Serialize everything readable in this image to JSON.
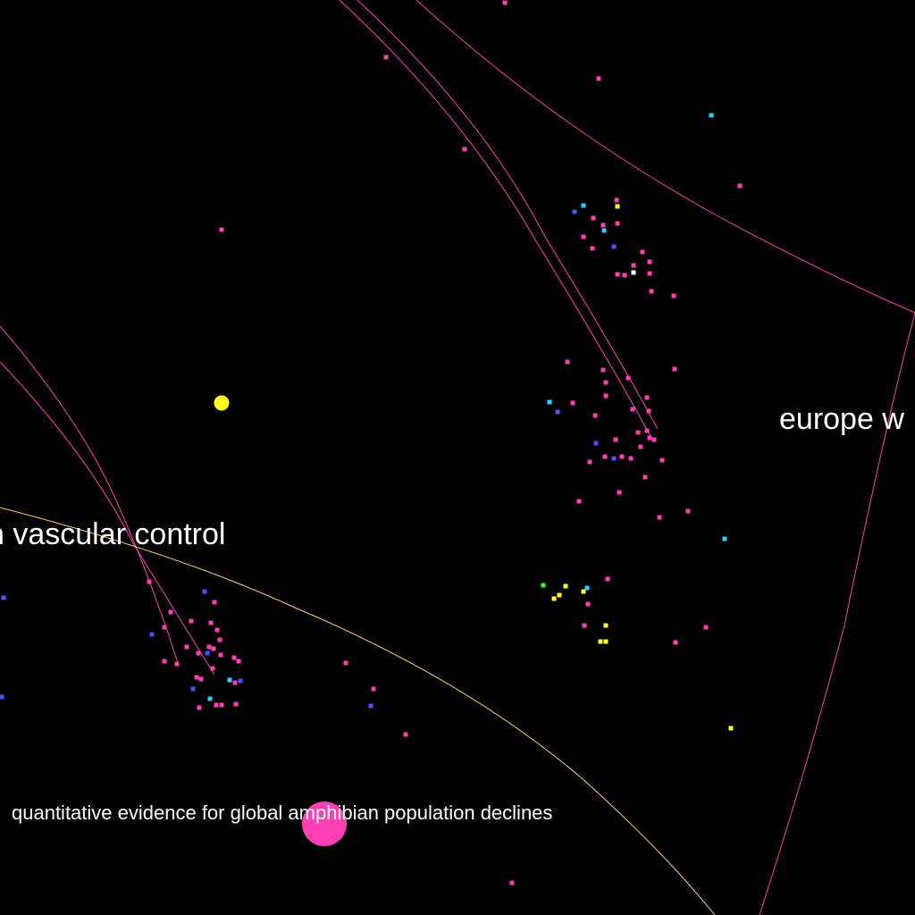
{
  "map": {
    "background": "#000000",
    "labels": {
      "vascular": "n vascular control",
      "europe": "europe w",
      "amphibian": "quantitative evidence for global amphibian population declines"
    },
    "colors": {
      "pink": "#ff3fb4",
      "blue": "#5050ff",
      "cyan": "#30d0ff",
      "yellow": "#ffff20",
      "green": "#30ff30",
      "white": "#ffffff"
    }
  }
}
